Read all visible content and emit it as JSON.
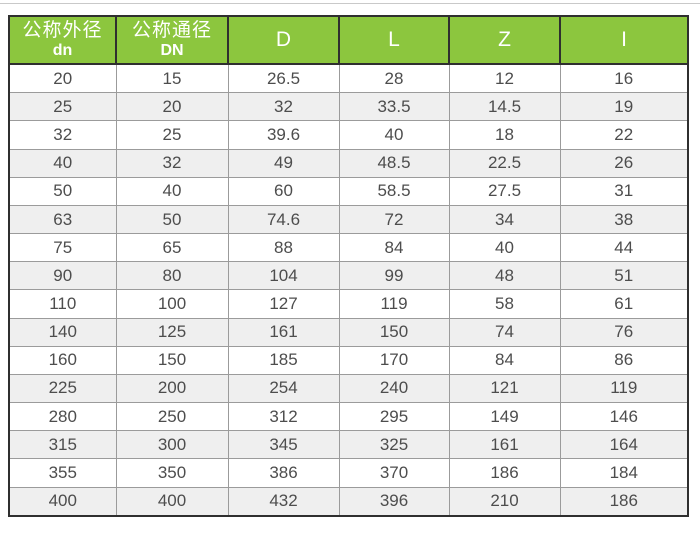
{
  "page": {
    "background": "#ffffff",
    "top_divider_color": "#c9c9c9"
  },
  "table": {
    "colors": {
      "header_bg": "#8cc63e",
      "header_text": "#ffffff",
      "outer_border": "#2f2f2f",
      "cell_border": "#9b9b9b",
      "stripe": "#efefef",
      "cell_text": "#4d4d4d"
    },
    "columns": [
      {
        "label": "公称外径",
        "sublabel": "dn"
      },
      {
        "label": "公称通径",
        "sublabel": "DN"
      },
      {
        "label": "D",
        "sublabel": ""
      },
      {
        "label": "L",
        "sublabel": ""
      },
      {
        "label": "Z",
        "sublabel": ""
      },
      {
        "label": "I",
        "sublabel": ""
      }
    ],
    "rows": [
      [
        "20",
        "15",
        "26.5",
        "28",
        "12",
        "16"
      ],
      [
        "25",
        "20",
        "32",
        "33.5",
        "14.5",
        "19"
      ],
      [
        "32",
        "25",
        "39.6",
        "40",
        "18",
        "22"
      ],
      [
        "40",
        "32",
        "49",
        "48.5",
        "22.5",
        "26"
      ],
      [
        "50",
        "40",
        "60",
        "58.5",
        "27.5",
        "31"
      ],
      [
        "63",
        "50",
        "74.6",
        "72",
        "34",
        "38"
      ],
      [
        "75",
        "65",
        "88",
        "84",
        "40",
        "44"
      ],
      [
        "90",
        "80",
        "104",
        "99",
        "48",
        "51"
      ],
      [
        "110",
        "100",
        "127",
        "119",
        "58",
        "61"
      ],
      [
        "140",
        "125",
        "161",
        "150",
        "74",
        "76"
      ],
      [
        "160",
        "150",
        "185",
        "170",
        "84",
        "86"
      ],
      [
        "225",
        "200",
        "254",
        "240",
        "121",
        "119"
      ],
      [
        "280",
        "250",
        "312",
        "295",
        "149",
        "146"
      ],
      [
        "315",
        "300",
        "345",
        "325",
        "161",
        "164"
      ],
      [
        "355",
        "350",
        "386",
        "370",
        "186",
        "184"
      ],
      [
        "400",
        "400",
        "432",
        "396",
        "210",
        "186"
      ]
    ]
  }
}
